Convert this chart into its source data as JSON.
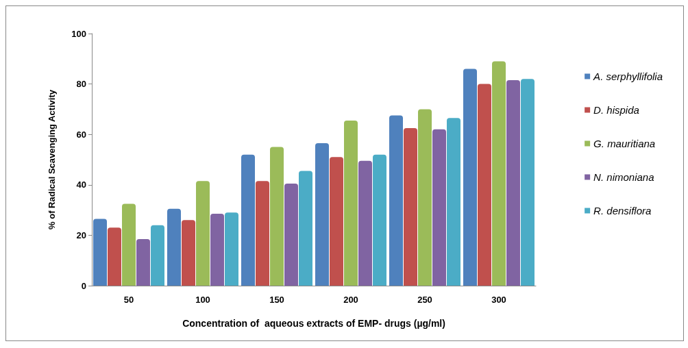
{
  "chart_data": {
    "type": "bar",
    "xlabel": "Concentration of  aqueous extracts of EMP- drugs (µg/ml)",
    "ylabel": "% of Radical Scavenging Activity",
    "categories": [
      "50",
      "100",
      "150",
      "200",
      "250",
      "300"
    ],
    "series": [
      {
        "name": "A. serphyllifolia",
        "color": "#4f81bd",
        "values": [
          26.5,
          30.5,
          52,
          56.5,
          67.5,
          86
        ]
      },
      {
        "name": "D. hispida",
        "color": "#c0504d",
        "values": [
          23,
          26,
          41.5,
          51,
          62.5,
          80
        ]
      },
      {
        "name": "G. mauritiana",
        "color": "#9bbb59",
        "values": [
          32.5,
          41.5,
          55,
          65.5,
          70,
          89
        ]
      },
      {
        "name": "N. nimoniana",
        "color": "#8064a2",
        "values": [
          18.5,
          28.5,
          40.5,
          49.5,
          62,
          81.5
        ]
      },
      {
        "name": "R. densiflora",
        "color": "#4bacc6",
        "values": [
          24,
          29,
          45.5,
          52,
          66.5,
          82
        ]
      }
    ],
    "ylim": [
      0,
      100
    ],
    "yticks": [
      0,
      20,
      40,
      60,
      80,
      100
    ],
    "grid": false,
    "legend": "right"
  }
}
